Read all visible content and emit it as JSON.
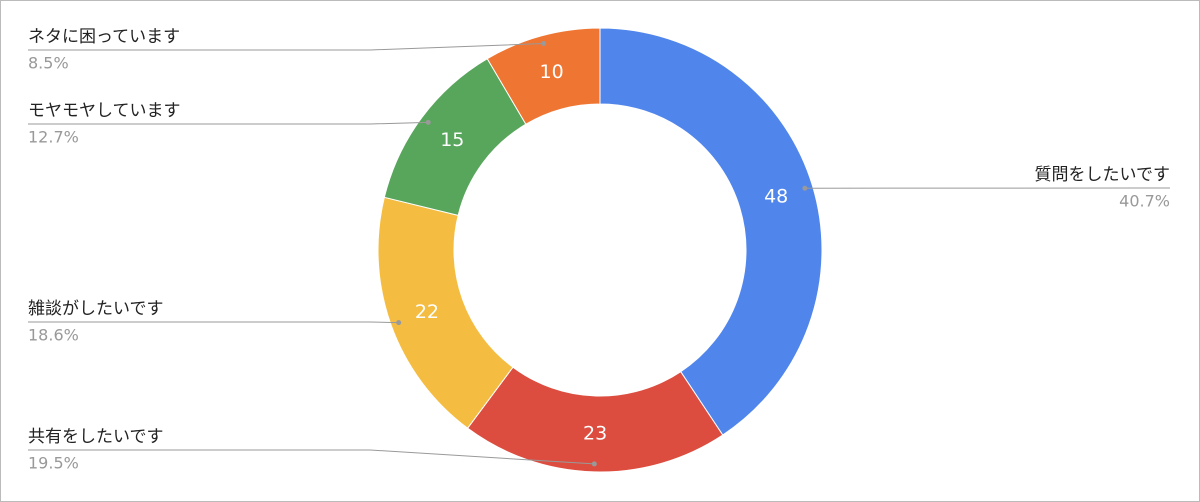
{
  "chart_data": {
    "type": "donut",
    "categories": [
      "質問をしたいです",
      "共有をしたいです",
      "雑談がしたいです",
      "モヤモヤしています",
      "ネタに困っています"
    ],
    "values": [
      48,
      23,
      22,
      15,
      10
    ],
    "percent_labels": [
      "40.7%",
      "19.5%",
      "18.6%",
      "12.7%",
      "8.5%"
    ],
    "colors": [
      "#5086ec",
      "#dc4d3f",
      "#f4bd42",
      "#58a55c",
      "#ef7532"
    ]
  }
}
